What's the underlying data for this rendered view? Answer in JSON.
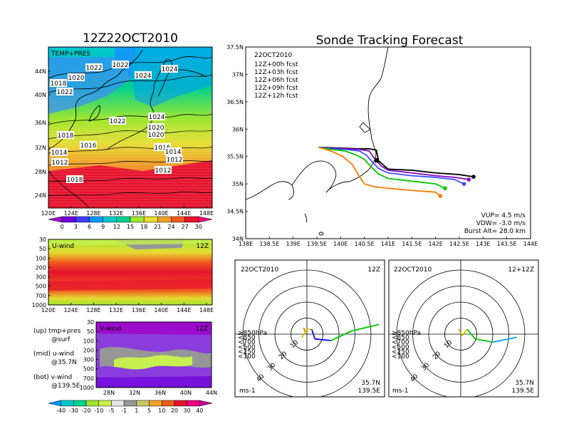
{
  "main_title": "12Z22OCT2010",
  "right_title": "Sonde Tracking Forecast",
  "panel_tp": {
    "label": "TEMP+PRES"
  },
  "panel_u": {
    "label": "U-wind",
    "time": "12Z"
  },
  "panel_v": {
    "label": "V-wind",
    "time": "12Z"
  },
  "notes": {
    "up": "(up) tmp+pres",
    "up2": "@surf",
    "mid": "(mid) u-wind",
    "mid2": "@35.7N",
    "bot": "(bot) v-wind",
    "bot2": "@139.5E"
  },
  "track": {
    "date": "22OCT2010",
    "legend": [
      "12Z+00h fcst",
      "12Z+03h fcst",
      "12Z+06h fcst",
      "12Z+09h fcst",
      "12Z+12h fcst"
    ],
    "legend_colors": [
      "#000000",
      "#8a00c8",
      "#3c50ff",
      "#00c800",
      "#ff7800"
    ],
    "params": [
      "VUP= 4.5 m/s",
      "VDW= -3.0 m/s",
      "Burst Alt= 28.0 km"
    ]
  },
  "hodo1": {
    "date": "22OCT2010",
    "time": "12Z",
    "lat": "35.7N",
    "lon": "139.5E",
    "unit": "ms-1"
  },
  "hodo2": {
    "date": "22OCT2010",
    "time": "12+12Z",
    "lat": "35.7N",
    "lon": "139.5E",
    "unit": "ms-1"
  },
  "hodo_legend": [
    "≥850hPa",
    "<850",
    "<700",
    "<500",
    "<250",
    "<100"
  ],
  "hodo_legend_colors": [
    "#ff0000",
    "#ff7800",
    "#c8c800",
    "#00c800",
    "#00a0ff",
    "#0000ff"
  ],
  "hodo_rings": [
    "10",
    "20",
    "30",
    "40"
  ],
  "chart_data": [
    {
      "type": "heatmap",
      "title": "TEMP+PRES",
      "xlabels": [
        "120E",
        "124E",
        "128E",
        "132E",
        "136E",
        "140E",
        "144E",
        "148E"
      ],
      "ylabels": [
        "24N",
        "28N",
        "32N",
        "36N",
        "40N",
        "44N"
      ],
      "isobars": [
        "1022",
        "1022",
        "1024",
        "1024",
        "1020",
        "1018",
        "1022",
        "1024",
        "1022",
        "1020",
        "1020",
        "1018",
        "1016",
        "1016",
        "1014",
        "1014",
        "1012",
        "1012",
        "1012",
        "1018"
      ],
      "colorbar": [
        "0",
        "3",
        "6",
        "9",
        "12",
        "15",
        "18",
        "21",
        "24",
        "27",
        "30"
      ],
      "colorbar_colors": [
        "#a000c8",
        "#6e00dc",
        "#3c3cff",
        "#0096ff",
        "#00c8c8",
        "#00d28c",
        "#a0e632",
        "#e6dc32",
        "#f0a028",
        "#f05a1e",
        "#e6142d",
        "#f00082"
      ]
    },
    {
      "type": "heatmap",
      "title": "U-wind",
      "xlabels": [
        "120E",
        "124E",
        "128E",
        "132E",
        "136E",
        "140E",
        "144E",
        "148E"
      ],
      "ylabels": [
        "30",
        "50",
        "100",
        "200",
        "300",
        "500",
        "700",
        "1000"
      ]
    },
    {
      "type": "heatmap",
      "title": "V-wind",
      "xlabels": [
        "28N",
        "32N",
        "36N",
        "40N",
        "44N"
      ],
      "ylabels": [
        "30",
        "50",
        "100",
        "200",
        "300",
        "500",
        "700",
        "1000"
      ],
      "colorbar": [
        "-40",
        "-30",
        "-20",
        "-10",
        "-5",
        "-1",
        "1",
        "5",
        "10",
        "20",
        "30",
        "40"
      ],
      "colorbar_colors": [
        "#0096ff",
        "#00c8c8",
        "#00d28c",
        "#a0e632",
        "#c8f050",
        "#e6e6e6",
        "#969696",
        "#c8c864",
        "#f0a028",
        "#f05a1e",
        "#e6142d",
        "#f00082",
        "#c800a0"
      ]
    },
    {
      "type": "line",
      "title": "Sonde Tracking Forecast",
      "xlabels": [
        "138E",
        "138.5E",
        "139E",
        "139.5E",
        "140E",
        "140.5E",
        "141E",
        "141.5E",
        "142E",
        "142.5E",
        "143E",
        "143.5E",
        "144E"
      ],
      "ylabels": [
        "34N",
        "34.5N",
        "35N",
        "35.5N",
        "36N",
        "36.5N",
        "37N",
        "37.5N"
      ],
      "xlim": [
        138,
        144
      ],
      "ylim": [
        34,
        37.5
      ],
      "series": [
        {
          "name": "12Z+00h fcst",
          "lon": [
            139.53,
            139.8,
            140.1,
            140.4,
            140.6,
            140.75,
            140.8,
            141.0,
            141.5,
            142.0,
            142.5,
            142.8
          ],
          "lat": [
            35.67,
            35.66,
            35.65,
            35.64,
            35.64,
            35.62,
            35.42,
            35.27,
            35.25,
            35.2,
            35.17,
            35.13
          ]
        },
        {
          "name": "12Z+03h fcst",
          "lon": [
            139.53,
            139.8,
            140.1,
            140.4,
            140.6,
            140.7,
            140.85,
            141.0,
            141.5,
            142.0,
            142.4,
            142.7
          ],
          "lat": [
            35.67,
            35.65,
            35.64,
            35.63,
            35.6,
            35.48,
            35.33,
            35.25,
            35.2,
            35.15,
            35.12,
            35.08
          ]
        },
        {
          "name": "12Z+06h fcst",
          "lon": [
            139.53,
            139.8,
            140.1,
            140.4,
            140.55,
            140.65,
            140.8,
            141.0,
            141.5,
            142.0,
            142.4,
            142.6
          ],
          "lat": [
            35.67,
            35.64,
            35.63,
            35.6,
            35.52,
            35.42,
            35.28,
            35.2,
            35.15,
            35.12,
            35.08,
            35.0
          ]
        },
        {
          "name": "12Z+09h fcst",
          "lon": [
            139.53,
            139.8,
            140.1,
            140.35,
            140.5,
            140.6,
            140.8,
            141.0,
            141.5,
            142.0,
            142.2
          ],
          "lat": [
            35.67,
            35.63,
            35.6,
            35.52,
            35.45,
            35.35,
            35.18,
            35.1,
            35.05,
            35.0,
            34.92
          ]
        },
        {
          "name": "12Z+12h fcst",
          "lon": [
            139.53,
            139.8,
            140.05,
            140.25,
            140.35,
            140.5,
            140.7,
            141.0,
            141.5,
            142.0,
            142.1
          ],
          "lat": [
            35.67,
            35.6,
            35.5,
            35.35,
            35.2,
            35.0,
            34.95,
            34.92,
            34.88,
            34.85,
            34.78
          ]
        }
      ]
    },
    {
      "type": "scatter",
      "title": "Hodograph 12Z",
      "rings": [
        10,
        20,
        30,
        40
      ],
      "u": [
        -2,
        -1,
        -3,
        0,
        3,
        5,
        15,
        28,
        45
      ],
      "v": [
        4,
        1,
        -2,
        3,
        3,
        -3,
        -4,
        2,
        6
      ],
      "colors": [
        "#ff0000",
        "#ff7800",
        "#ff7800",
        "#c8c800",
        "#c8c800",
        "#0000ff",
        "#0000ff",
        "#00c800",
        "#00c800"
      ]
    },
    {
      "type": "scatter",
      "title": "Hodograph 12+12Z",
      "rings": [
        10,
        20,
        30,
        40
      ],
      "u": [
        -1,
        0,
        1,
        4,
        9,
        20,
        35
      ],
      "v": [
        3,
        1,
        -1,
        3,
        -3,
        -5,
        -2
      ],
      "colors": [
        "#ff0000",
        "#ff7800",
        "#c8c800",
        "#c8c800",
        "#00c800",
        "#00c800",
        "#00a0ff"
      ]
    }
  ]
}
